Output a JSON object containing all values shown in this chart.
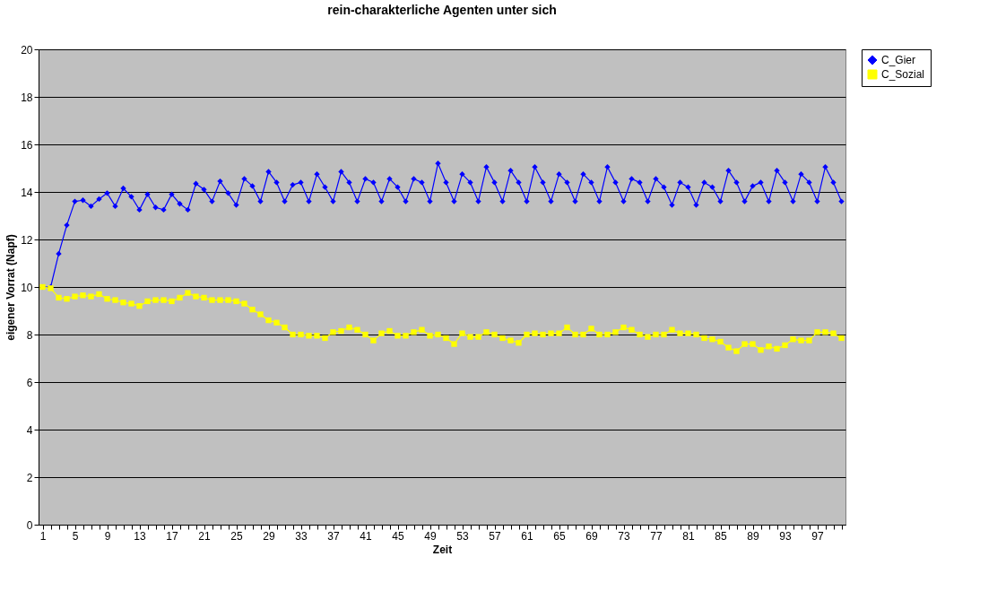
{
  "chart_data": {
    "type": "line",
    "title": "rein-charakterliche Agenten unter sich",
    "xlabel": "Zeit",
    "ylabel": "eigener Vorrat (Napf)",
    "categories": [
      "1",
      null,
      null,
      null,
      "5",
      null,
      null,
      null,
      "9",
      null,
      null,
      null,
      "13",
      null,
      null,
      null,
      "17",
      null,
      null,
      null,
      "21",
      null,
      null,
      null,
      "25",
      null,
      null,
      null,
      "29",
      null,
      null,
      null,
      "33",
      null,
      null,
      null,
      "37",
      null,
      null,
      null,
      "41",
      null,
      null,
      null,
      "45",
      null,
      null,
      null,
      "49",
      null,
      null,
      null,
      "53",
      null,
      null,
      null,
      "57",
      null,
      null,
      null,
      "61",
      null,
      null,
      null,
      "65",
      null,
      null,
      null,
      "69",
      null,
      null,
      null,
      "73",
      null,
      null,
      null,
      "77",
      null,
      null,
      null,
      "81",
      null,
      null,
      null,
      "85",
      null,
      null,
      null,
      "89",
      null,
      null,
      null,
      "93",
      null,
      null,
      null,
      "97",
      null,
      null,
      null
    ],
    "series": [
      {
        "name": "C_Gier",
        "color": "#0000ff",
        "marker": "diamond",
        "values": [
          10,
          10,
          11.4,
          12.6,
          13.6,
          13.65,
          13.4,
          13.7,
          13.95,
          13.4,
          14.15,
          13.8,
          13.25,
          13.9,
          13.35,
          13.25,
          13.9,
          13.5,
          13.25,
          14.35,
          14.1,
          13.6,
          14.45,
          13.95,
          13.45,
          14.55,
          14.25,
          13.6,
          14.85,
          14.4,
          13.6,
          14.3,
          14.4,
          13.6,
          14.75,
          14.2,
          13.6,
          14.85,
          14.4,
          13.6,
          14.55,
          14.4,
          13.6,
          14.55,
          14.2,
          13.6,
          14.55,
          14.4,
          13.6,
          15.2,
          14.4,
          13.6,
          14.75,
          14.4,
          13.6,
          15.05,
          14.4,
          13.6,
          14.9,
          14.4,
          13.6,
          15.05,
          14.4,
          13.6,
          14.75,
          14.4,
          13.6,
          14.75,
          14.4,
          13.6,
          15.05,
          14.4,
          13.6,
          14.55,
          14.4,
          13.6,
          14.55,
          14.2,
          13.45,
          14.4,
          14.2,
          13.45,
          14.4,
          14.2,
          13.6,
          14.9,
          14.4,
          13.6,
          14.25,
          14.4,
          13.6,
          14.9,
          14.4,
          13.6,
          14.75,
          14.4,
          13.6,
          15.05,
          14.4,
          13.6
        ]
      },
      {
        "name": "C_Sozial",
        "color": "#ffff00",
        "marker": "square",
        "values": [
          10,
          9.95,
          9.55,
          9.5,
          9.6,
          9.65,
          9.6,
          9.7,
          9.5,
          9.45,
          9.35,
          9.3,
          9.2,
          9.4,
          9.45,
          9.45,
          9.4,
          9.55,
          9.75,
          9.6,
          9.55,
          9.45,
          9.45,
          9.45,
          9.4,
          9.3,
          9.05,
          8.85,
          8.6,
          8.5,
          8.3,
          8.0,
          8.0,
          7.95,
          7.95,
          7.85,
          8.1,
          8.15,
          8.3,
          8.2,
          8.0,
          7.75,
          8.05,
          8.15,
          7.95,
          7.95,
          8.1,
          8.2,
          7.95,
          8.0,
          7.85,
          7.6,
          8.05,
          7.9,
          7.9,
          8.1,
          8.0,
          7.85,
          7.75,
          7.65,
          8.0,
          8.05,
          8.0,
          8.05,
          8.05,
          8.3,
          8.0,
          8.0,
          8.25,
          8.0,
          8.0,
          8.1,
          8.3,
          8.2,
          8.0,
          7.9,
          8.0,
          8.0,
          8.2,
          8.05,
          8.05,
          8.0,
          7.85,
          7.8,
          7.7,
          7.45,
          7.3,
          7.6,
          7.6,
          7.35,
          7.5,
          7.4,
          7.55,
          7.8,
          7.75,
          7.75,
          8.1,
          8.1,
          8.05,
          7.85
        ]
      }
    ],
    "ylim": [
      0,
      20
    ],
    "yticks": [
      0,
      2,
      4,
      6,
      8,
      10,
      12,
      14,
      16,
      18,
      20
    ],
    "grid": "y",
    "legend": "right",
    "line_style": "solid"
  }
}
